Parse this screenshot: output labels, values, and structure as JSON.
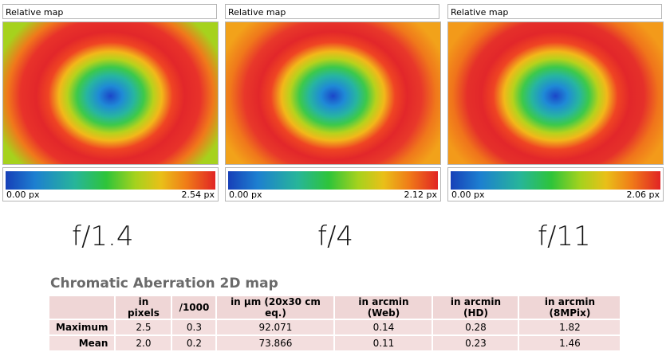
{
  "panels": [
    {
      "title": "Relative map",
      "scale_min": "0.00 px",
      "scale_max": "2.54 px",
      "aperture": "f/1.4",
      "map_colors": {
        "center": "#1d4ed0",
        "ring": "#27c06a",
        "outer": "#e8322a",
        "edge": "#9ad21d"
      }
    },
    {
      "title": "Relative map",
      "scale_min": "0.00 px",
      "scale_max": "2.12 px",
      "aperture": "f/4",
      "map_colors": {
        "center": "#1d4ed0",
        "ring": "#27c06a",
        "outer": "#e8322a",
        "edge": "#f08a1a"
      }
    },
    {
      "title": "Relative map",
      "scale_min": "0.00 px",
      "scale_max": "2.06 px",
      "aperture": "f/11",
      "map_colors": {
        "center": "#1d4ed0",
        "ring": "#27c06a",
        "outer": "#e8322a",
        "edge": "#f08a1a"
      }
    }
  ],
  "table": {
    "title": "Chromatic Aberration 2D map",
    "columns": [
      "",
      "in pixels",
      "/1000",
      "in µm (20x30 cm eq.)",
      "in arcmin (Web)",
      "in arcmin (HD)",
      "in arcmin (8MPix)"
    ],
    "rows": [
      {
        "label": "Maximum",
        "values": [
          "2.5",
          "0.3",
          "92.071",
          "0.14",
          "0.28",
          "1.82"
        ]
      },
      {
        "label": "Mean",
        "values": [
          "2.0",
          "0.2",
          "73.866",
          "0.11",
          "0.23",
          "1.46"
        ]
      }
    ]
  }
}
